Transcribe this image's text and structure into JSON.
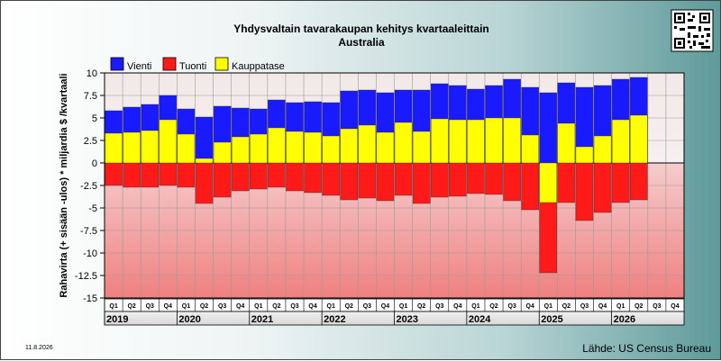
{
  "chart_data": {
    "type": "bar",
    "title": "Yhdysvaltain tavarakaupan kehitys kvartaaleittain",
    "subtitle": "Australia",
    "ylabel": "Rahavirta (+ sisään -ulos)  * miljardia $ /kvartaali",
    "ylim": [
      -15,
      10
    ],
    "yticks": [
      10,
      7.5,
      5,
      2.5,
      0,
      -2.5,
      -5,
      -7.5,
      -10,
      -12.5,
      -15
    ],
    "ytick_labels": [
      "10",
      "7.5",
      "5",
      "2.5",
      "0",
      "-2.5",
      "-5",
      "-7.5",
      "-10",
      "-12.5",
      "-15"
    ],
    "legend_position": "top-left",
    "categories": [
      "Q1",
      "Q2",
      "Q3",
      "Q4",
      "Q1",
      "Q2",
      "Q3",
      "Q4",
      "Q1",
      "Q2",
      "Q3",
      "Q4",
      "Q1",
      "Q2",
      "Q3",
      "Q4",
      "Q1",
      "Q2",
      "Q3",
      "Q4",
      "Q1",
      "Q2",
      "Q3",
      "Q4",
      "Q1",
      "Q2",
      "Q3",
      "Q4",
      "Q1",
      "Q2",
      "Q3",
      "Q4"
    ],
    "years": [
      "2019",
      "2020",
      "2021",
      "2022",
      "2023",
      "2024",
      "2025",
      "2026"
    ],
    "series": [
      {
        "name": "Vienti",
        "color": "#1a1aff",
        "values": [
          5.8,
          6.2,
          6.5,
          7.5,
          6.0,
          5.1,
          6.3,
          6.1,
          6.0,
          7.0,
          6.7,
          6.8,
          6.7,
          8.0,
          8.1,
          7.8,
          8.1,
          8.1,
          8.8,
          8.6,
          8.2,
          8.6,
          9.3,
          8.4,
          7.8,
          8.9,
          8.4,
          8.6,
          9.3,
          9.5,
          null,
          null
        ]
      },
      {
        "name": "Tuonti",
        "color": "#ff1a1a",
        "values": [
          -2.5,
          -2.7,
          -2.7,
          -2.5,
          -2.7,
          -4.5,
          -3.8,
          -3.1,
          -2.9,
          -2.7,
          -3.1,
          -3.3,
          -3.6,
          -4.1,
          -3.9,
          -4.2,
          -3.6,
          -4.5,
          -3.8,
          -3.7,
          -3.4,
          -3.5,
          -4.2,
          -5.2,
          -12.2,
          -4.4,
          -6.4,
          -5.5,
          -4.4,
          -4.1,
          null,
          null
        ]
      },
      {
        "name": "Kauppatase",
        "color": "#ffff00",
        "values": [
          3.3,
          3.4,
          3.6,
          4.8,
          3.2,
          0.5,
          2.3,
          2.9,
          3.2,
          3.9,
          3.5,
          3.4,
          3.0,
          3.8,
          4.2,
          3.4,
          4.5,
          3.5,
          4.9,
          4.8,
          4.8,
          5.0,
          5.0,
          3.1,
          -4.4,
          4.4,
          1.8,
          3.0,
          4.8,
          5.3,
          null,
          null
        ]
      }
    ]
  },
  "footer": {
    "source": "Lähde: US Census Bureau",
    "date": "11.8.2026"
  }
}
